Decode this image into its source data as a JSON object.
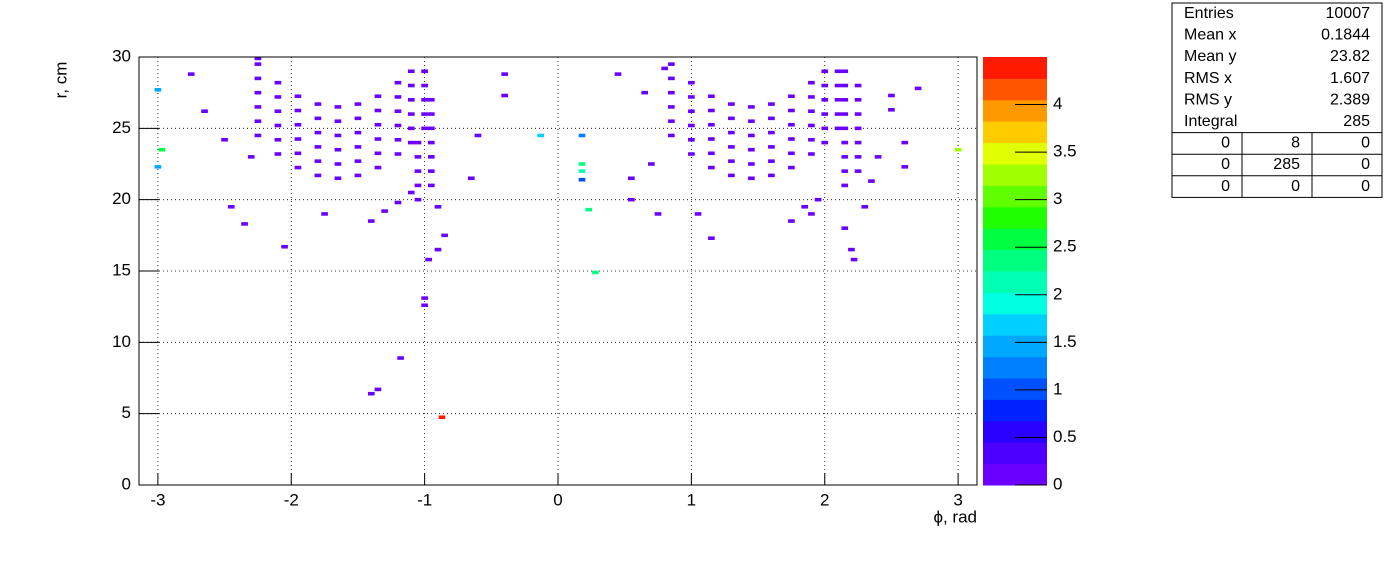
{
  "chart_data": {
    "type": "heatmap",
    "xlabel": "ϕ, rad",
    "ylabel": "r, cm",
    "xlim": [
      -3.14159,
      3.14159
    ],
    "ylim": [
      0,
      30
    ],
    "xticks": [
      -3,
      -2,
      -1,
      0,
      1,
      2,
      3
    ],
    "yticks": [
      0,
      5,
      10,
      15,
      20,
      25,
      30
    ],
    "zlim": [
      0,
      4.5
    ],
    "zticks": [
      0,
      0.5,
      1,
      1.5,
      2,
      2.5,
      3,
      3.5,
      4
    ],
    "grid": true,
    "bin_width": [
      0.05,
      0.25
    ],
    "palette": [
      "#6a00ff",
      "#4c00ff",
      "#2a00ff",
      "#0022ff",
      "#0050ff",
      "#0080ff",
      "#00a8ff",
      "#00d0ff",
      "#00ffe0",
      "#00ffb0",
      "#00ff80",
      "#00ff40",
      "#20ff00",
      "#60ff00",
      "#a0ff00",
      "#e0ff00",
      "#ffcc00",
      "#ff9900",
      "#ff5500",
      "#ff1a00"
    ],
    "cells": [
      [
        -2.25,
        29.5,
        0.1
      ],
      [
        -2.1,
        28.2,
        0.1
      ],
      [
        -1.95,
        27.25,
        0.1
      ],
      [
        -1.8,
        26.7,
        0.1
      ],
      [
        -1.65,
        26.5,
        0.1
      ],
      [
        -1.5,
        26.7,
        0.1
      ],
      [
        -1.35,
        27.25,
        0.1
      ],
      [
        -1.2,
        28.2,
        0.1
      ],
      [
        -1.1,
        29.0,
        0.1
      ],
      [
        -2.25,
        28.5,
        0.1
      ],
      [
        -2.1,
        27.2,
        0.1
      ],
      [
        -1.95,
        26.25,
        0.1
      ],
      [
        -1.8,
        25.7,
        0.1
      ],
      [
        -1.65,
        25.5,
        0.1
      ],
      [
        -1.5,
        25.7,
        0.1
      ],
      [
        -1.35,
        26.25,
        0.1
      ],
      [
        -1.2,
        27.2,
        0.1
      ],
      [
        -1.1,
        28.0,
        0.1
      ],
      [
        -1.0,
        29.0,
        0.1
      ],
      [
        -2.25,
        27.5,
        0.1
      ],
      [
        -2.1,
        26.2,
        0.1
      ],
      [
        -1.95,
        25.25,
        0.1
      ],
      [
        -1.8,
        24.7,
        0.1
      ],
      [
        -1.65,
        24.5,
        0.1
      ],
      [
        -1.5,
        24.7,
        0.1
      ],
      [
        -1.35,
        25.25,
        0.1
      ],
      [
        -1.2,
        26.2,
        0.1
      ],
      [
        -1.1,
        27.0,
        0.1
      ],
      [
        -1.0,
        28.0,
        0.1
      ],
      [
        -2.25,
        26.5,
        0.1
      ],
      [
        -2.1,
        25.2,
        0.1
      ],
      [
        -1.95,
        24.25,
        0.1
      ],
      [
        -1.8,
        23.7,
        0.1
      ],
      [
        -1.65,
        23.5,
        0.1
      ],
      [
        -1.5,
        23.7,
        0.1
      ],
      [
        -1.35,
        24.25,
        0.1
      ],
      [
        -1.2,
        25.2,
        0.1
      ],
      [
        -1.1,
        26.0,
        0.1
      ],
      [
        -1.0,
        27.0,
        0.1
      ],
      [
        -2.25,
        25.5,
        0.1
      ],
      [
        -2.1,
        24.2,
        0.1
      ],
      [
        -1.95,
        23.25,
        0.1
      ],
      [
        -1.8,
        22.7,
        0.1
      ],
      [
        -1.65,
        22.5,
        0.1
      ],
      [
        -1.5,
        22.7,
        0.1
      ],
      [
        -1.35,
        23.25,
        0.1
      ],
      [
        -1.2,
        24.2,
        0.1
      ],
      [
        -1.1,
        25.0,
        0.1
      ],
      [
        -1.0,
        26.0,
        0.1
      ],
      [
        -2.25,
        24.5,
        0.1
      ],
      [
        -2.1,
        23.2,
        0.1
      ],
      [
        -1.95,
        22.25,
        0.1
      ],
      [
        -1.8,
        21.7,
        0.1
      ],
      [
        -1.65,
        21.5,
        0.1
      ],
      [
        -1.5,
        21.7,
        0.1
      ],
      [
        -1.35,
        22.25,
        0.1
      ],
      [
        -1.2,
        23.2,
        0.1
      ],
      [
        -1.1,
        24.0,
        0.1
      ],
      [
        -1.0,
        25.0,
        0.1
      ],
      [
        -1.05,
        20,
        0.1
      ],
      [
        -1.05,
        21,
        0.1
      ],
      [
        -1.05,
        22,
        0.1
      ],
      [
        -1.05,
        23,
        0.1
      ],
      [
        -1.05,
        24,
        0.1
      ],
      [
        -0.95,
        21,
        0.1
      ],
      [
        -0.95,
        22,
        0.1
      ],
      [
        -0.95,
        23,
        0.1
      ],
      [
        -0.95,
        24,
        0.1
      ],
      [
        -0.95,
        25,
        0.1
      ],
      [
        -0.95,
        26,
        0.1
      ],
      [
        -0.95,
        27,
        0.1
      ],
      [
        -1.1,
        20.5,
        0.1
      ],
      [
        -1.2,
        19.8,
        0.1
      ],
      [
        -1.3,
        19.2,
        0.1
      ],
      [
        -1.4,
        18.5,
        0.1
      ],
      [
        -0.9,
        19.5,
        0.1
      ],
      [
        -0.85,
        17.5,
        0.1
      ],
      [
        -0.9,
        16.5,
        0.1
      ],
      [
        -0.97,
        15.8,
        0.1
      ],
      [
        -1.0,
        13.1,
        0.1
      ],
      [
        -1.0,
        12.6,
        0.1
      ],
      [
        -1.18,
        8.9,
        0.1
      ],
      [
        -1.35,
        6.7,
        0.1
      ],
      [
        -1.4,
        6.4,
        0.1
      ],
      [
        -0.87,
        4.75,
        4.4
      ],
      [
        -2.75,
        28.8,
        0.1
      ],
      [
        -2.65,
        26.2,
        0.1
      ],
      [
        -2.5,
        24.2,
        0.1
      ],
      [
        -2.3,
        23.0,
        0.1
      ],
      [
        -2.35,
        18.3,
        0.1
      ],
      [
        -2.05,
        16.7,
        0.1
      ],
      [
        -2.25,
        29.9,
        0.1
      ],
      [
        -1.75,
        19.0,
        0.1
      ],
      [
        -2.45,
        19.5,
        0.1
      ],
      [
        -0.65,
        21.5,
        0.1
      ],
      [
        -0.4,
        27.3,
        0.1
      ],
      [
        -0.6,
        24.5,
        0.1
      ],
      [
        -0.4,
        28.8,
        0.1
      ],
      [
        -3.0,
        27.7,
        1.5
      ],
      [
        -3.0,
        22.3,
        1.5
      ],
      [
        -2.97,
        23.5,
        2.6
      ],
      [
        -0.13,
        24.5,
        1.6
      ],
      [
        0.18,
        24.5,
        1.3
      ],
      [
        0.18,
        22.5,
        2.3
      ],
      [
        0.18,
        22.0,
        2.1
      ],
      [
        0.18,
        21.4,
        1.1
      ],
      [
        0.23,
        19.3,
        2.4
      ],
      [
        0.28,
        14.9,
        2.3
      ],
      [
        3.0,
        23.5,
        3.2
      ],
      [
        0.45,
        28.8,
        0.1
      ],
      [
        0.65,
        27.5,
        0.1
      ],
      [
        0.8,
        29.2,
        0.1
      ],
      [
        0.55,
        21.5,
        0.1
      ],
      [
        0.55,
        20.0,
        0.1
      ],
      [
        0.75,
        19.0,
        0.1
      ],
      [
        0.7,
        22.5,
        0.1
      ],
      [
        0.85,
        29.5,
        0.1
      ],
      [
        1.0,
        28.2,
        0.1
      ],
      [
        1.15,
        27.25,
        0.1
      ],
      [
        1.3,
        26.7,
        0.1
      ],
      [
        1.45,
        26.5,
        0.1
      ],
      [
        1.6,
        26.7,
        0.1
      ],
      [
        1.75,
        27.25,
        0.1
      ],
      [
        1.9,
        28.2,
        0.1
      ],
      [
        2.0,
        29.0,
        0.1
      ],
      [
        0.85,
        28.5,
        0.1
      ],
      [
        1.0,
        27.2,
        0.1
      ],
      [
        1.15,
        26.25,
        0.1
      ],
      [
        1.3,
        25.7,
        0.1
      ],
      [
        1.45,
        25.5,
        0.1
      ],
      [
        1.6,
        25.7,
        0.1
      ],
      [
        1.75,
        26.25,
        0.1
      ],
      [
        1.9,
        27.2,
        0.1
      ],
      [
        2.0,
        28.0,
        0.1
      ],
      [
        2.1,
        29.0,
        0.1
      ],
      [
        0.85,
        27.5,
        0.1
      ],
      [
        1.0,
        26.2,
        0.1
      ],
      [
        1.15,
        25.25,
        0.1
      ],
      [
        1.3,
        24.7,
        0.1
      ],
      [
        1.45,
        24.5,
        0.1
      ],
      [
        1.6,
        24.7,
        0.1
      ],
      [
        1.75,
        25.25,
        0.1
      ],
      [
        1.9,
        26.2,
        0.1
      ],
      [
        2.0,
        27.0,
        0.1
      ],
      [
        2.1,
        28.0,
        0.1
      ],
      [
        0.85,
        26.5,
        0.1
      ],
      [
        1.0,
        25.2,
        0.1
      ],
      [
        1.15,
        24.25,
        0.1
      ],
      [
        1.3,
        23.7,
        0.1
      ],
      [
        1.45,
        23.5,
        0.1
      ],
      [
        1.6,
        23.7,
        0.1
      ],
      [
        1.75,
        24.25,
        0.1
      ],
      [
        1.9,
        25.2,
        0.1
      ],
      [
        2.0,
        26.0,
        0.1
      ],
      [
        2.1,
        27.0,
        0.1
      ],
      [
        0.85,
        25.5,
        0.1
      ],
      [
        1.0,
        24.2,
        0.1
      ],
      [
        1.15,
        23.25,
        0.1
      ],
      [
        1.3,
        22.7,
        0.1
      ],
      [
        1.45,
        22.5,
        0.1
      ],
      [
        1.6,
        22.7,
        0.1
      ],
      [
        1.75,
        23.25,
        0.1
      ],
      [
        1.9,
        24.2,
        0.1
      ],
      [
        2.0,
        25.0,
        0.1
      ],
      [
        2.1,
        26.0,
        0.1
      ],
      [
        0.85,
        24.5,
        0.1
      ],
      [
        1.0,
        23.2,
        0.1
      ],
      [
        1.15,
        22.25,
        0.1
      ],
      [
        1.3,
        21.7,
        0.1
      ],
      [
        1.45,
        21.5,
        0.1
      ],
      [
        1.6,
        21.7,
        0.1
      ],
      [
        1.75,
        22.25,
        0.1
      ],
      [
        1.9,
        23.2,
        0.1
      ],
      [
        2.0,
        24.0,
        0.1
      ],
      [
        2.1,
        25.0,
        0.1
      ],
      [
        2.15,
        21,
        0.1
      ],
      [
        2.15,
        22,
        0.1
      ],
      [
        2.15,
        23,
        0.1
      ],
      [
        2.15,
        24,
        0.1
      ],
      [
        2.15,
        25,
        0.1
      ],
      [
        2.15,
        26,
        0.1
      ],
      [
        2.15,
        27,
        0.1
      ],
      [
        2.15,
        28,
        0.1
      ],
      [
        2.15,
        29,
        0.1
      ],
      [
        2.25,
        22,
        0.1
      ],
      [
        2.25,
        23,
        0.1
      ],
      [
        2.25,
        24,
        0.1
      ],
      [
        2.25,
        25,
        0.1
      ],
      [
        2.25,
        26,
        0.1
      ],
      [
        2.25,
        27,
        0.1
      ],
      [
        2.25,
        28,
        0.1
      ],
      [
        1.95,
        20,
        0.1
      ],
      [
        1.85,
        19.5,
        0.1
      ],
      [
        1.75,
        18.5,
        0.1
      ],
      [
        1.9,
        19,
        0.1
      ],
      [
        2.15,
        18,
        0.1
      ],
      [
        2.3,
        19.5,
        0.1
      ],
      [
        2.2,
        16.5,
        0.1
      ],
      [
        2.22,
        15.8,
        0.1
      ],
      [
        1.15,
        17.3,
        0.1
      ],
      [
        1.05,
        19,
        0.1
      ],
      [
        2.5,
        27.3,
        0.1
      ],
      [
        2.7,
        27.8,
        0.1
      ],
      [
        2.6,
        24,
        0.1
      ],
      [
        2.4,
        23,
        0.1
      ],
      [
        2.35,
        21.3,
        0.1
      ],
      [
        2.5,
        26.3,
        0.1
      ],
      [
        2.6,
        22.3,
        0.1
      ]
    ],
    "stats": {
      "rows": [
        [
          "Entries",
          10007
        ],
        [
          "Mean x",
          0.1844
        ],
        [
          "Mean y",
          23.82
        ],
        [
          "RMS x",
          1.607
        ],
        [
          "RMS y",
          2.389
        ],
        [
          "Integral",
          285
        ]
      ],
      "grid": [
        [
          0,
          8,
          0
        ],
        [
          0,
          285,
          0
        ],
        [
          0,
          0,
          0
        ]
      ]
    }
  }
}
